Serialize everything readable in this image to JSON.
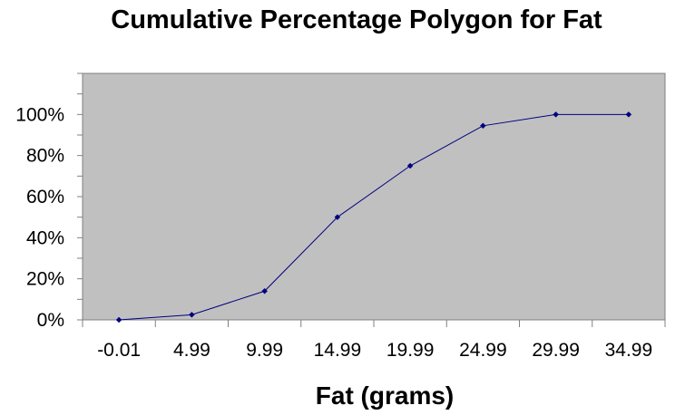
{
  "chart_data": {
    "type": "line",
    "title": "Cumulative Percentage Polygon for Fat",
    "xlabel": "Fat (grams)",
    "ylabel": "",
    "categories": [
      "-0.01",
      "4.99",
      "9.99",
      "14.99",
      "19.99",
      "24.99",
      "29.99",
      "34.99"
    ],
    "series": [
      {
        "values": [
          0,
          2.5,
          14,
          50,
          75,
          94.5,
          100,
          100
        ]
      }
    ],
    "y_ticks": [
      "0%",
      "20%",
      "40%",
      "60%",
      "80%",
      "100%"
    ],
    "ylim": [
      0,
      120
    ],
    "grid": false,
    "legend": "none",
    "colors": {
      "plot_background": "#c0c0c0",
      "series_line": "#000080",
      "axis": "#808080"
    }
  }
}
